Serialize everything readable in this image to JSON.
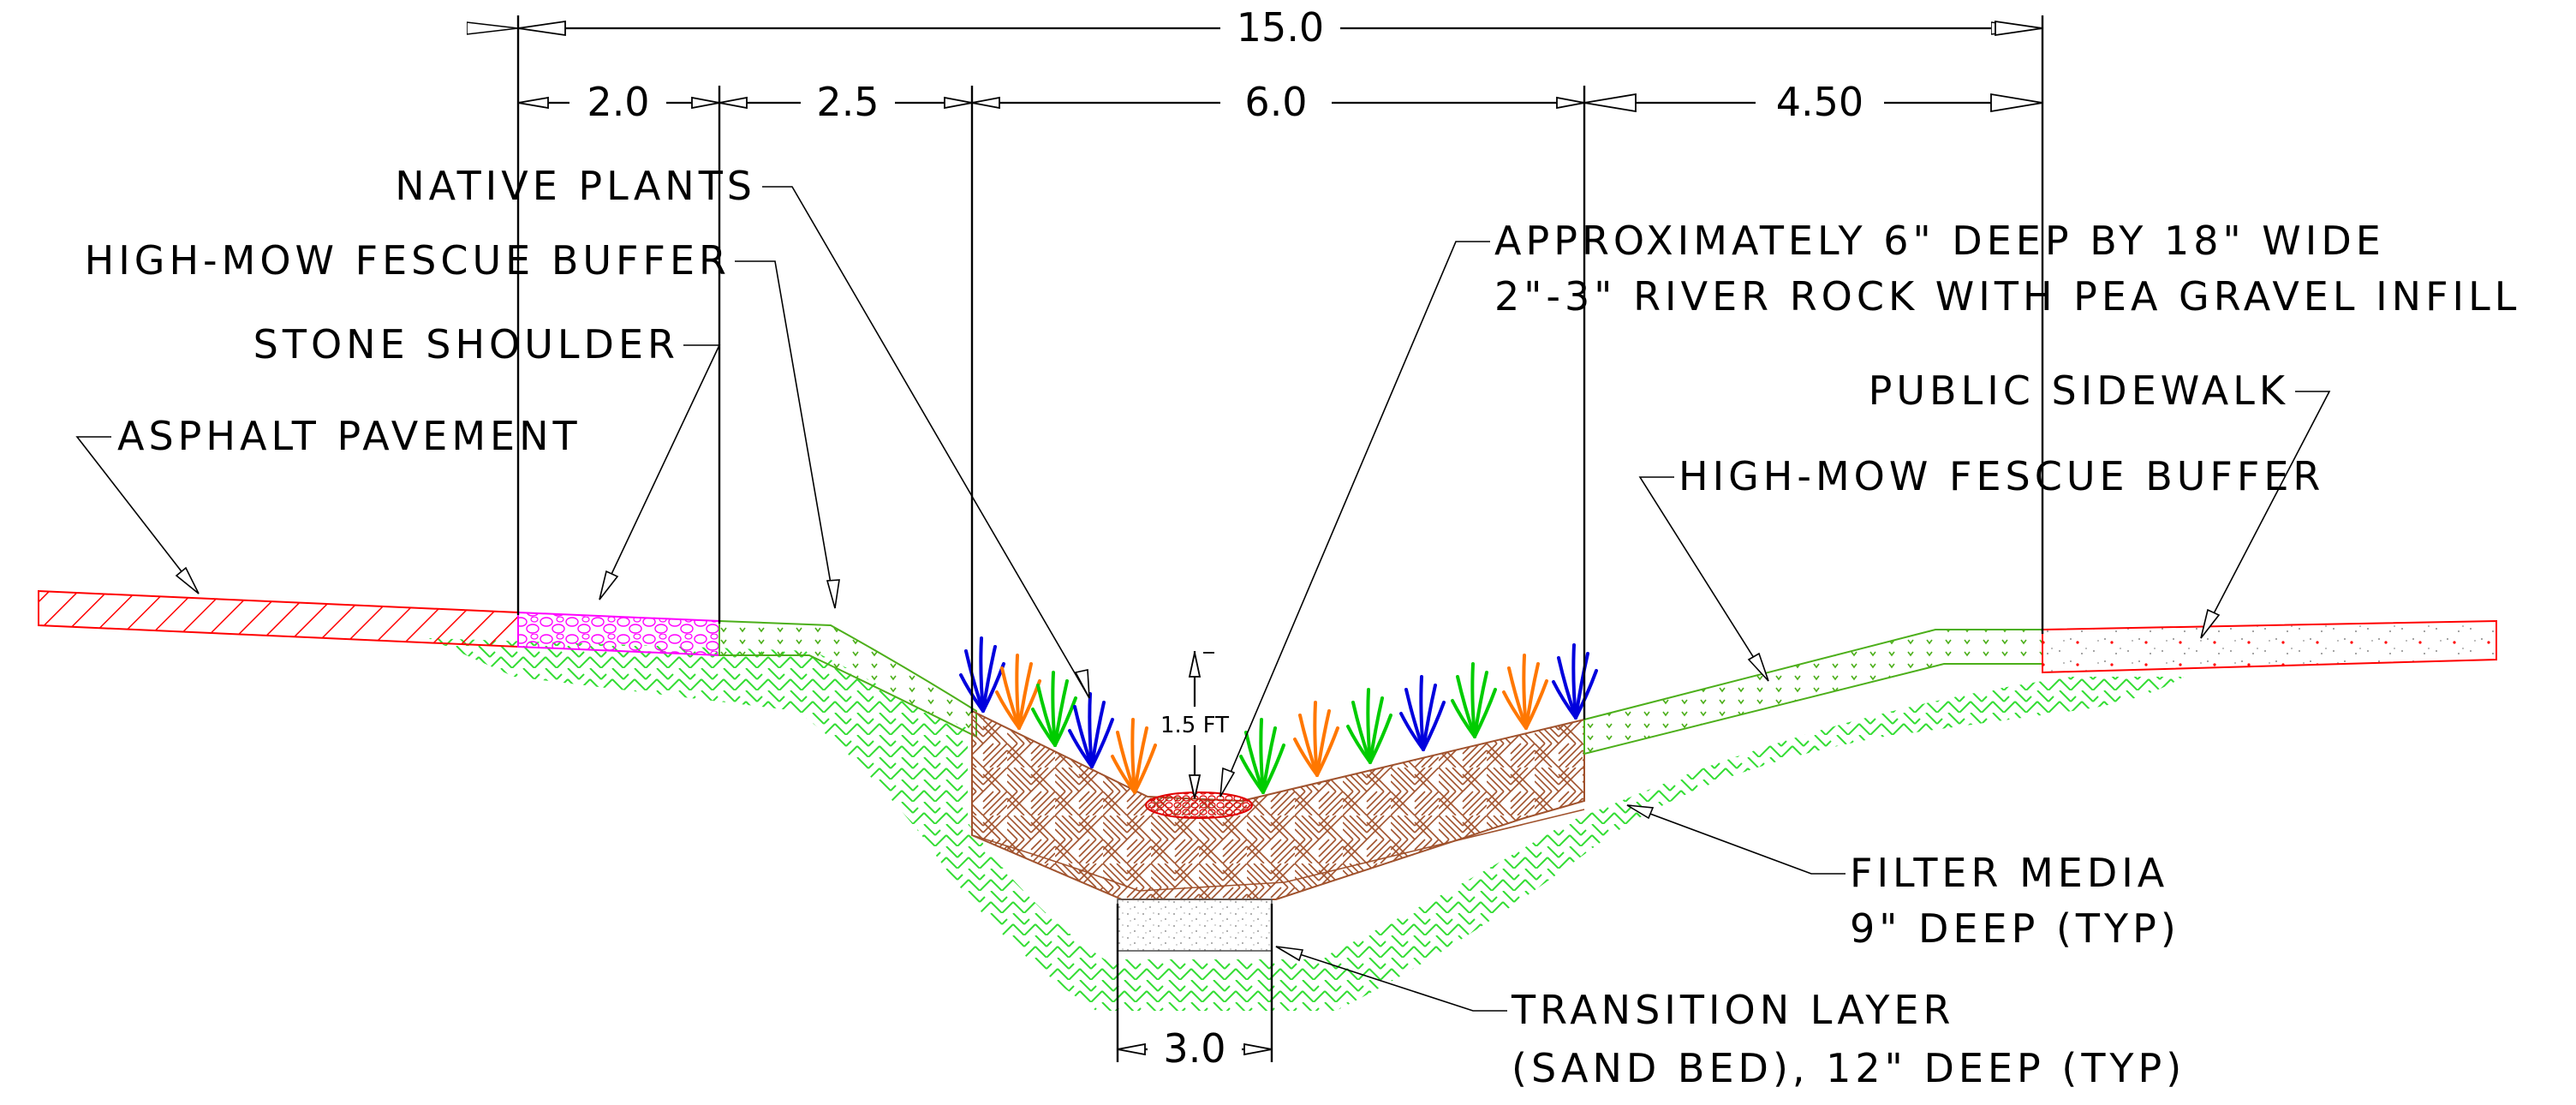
{
  "dimensions": {
    "overall": "15.0",
    "stone_shoulder_width": "2.0",
    "fescue_buffer_width": "2.5",
    "bioswale_width": "6.0",
    "right_buffer_width": "4.50",
    "sand_bed_width": "3.0",
    "depth": "1.5 FT"
  },
  "labels": {
    "native_plants": "NATIVE PLANTS",
    "fescue_buffer_left": "HIGH-MOW FESCUE BUFFER",
    "stone_shoulder": "STONE SHOULDER",
    "asphalt_pavement": "ASPHALT PAVEMENT",
    "river_rock_line1": "APPROXIMATELY 6\" DEEP BY 18\" WIDE",
    "river_rock_line2": "2\"-3\" RIVER ROCK WITH PEA GRAVEL INFILL",
    "public_sidewalk": "PUBLIC SIDEWALK",
    "fescue_buffer_right": "HIGH-MOW FESCUE BUFFER",
    "filter_media_line1": "FILTER MEDIA",
    "filter_media_line2": "9\" DEEP (TYP)",
    "transition_line1": "TRANSITION LAYER",
    "transition_line2": "(SAND BED), 12\" DEEP (TYP)"
  },
  "colors": {
    "asphalt": "#ff0000",
    "stone": "#ff00ff",
    "fescue": "#4caf1a",
    "soil_hatch": "#33dd33",
    "filter_media": "#a0522d",
    "river_rock": "#e00000",
    "sidewalk_outline": "#ff0000",
    "plant_blue": "#0000dd",
    "plant_orange": "#ff7700",
    "plant_green": "#00cc00"
  }
}
